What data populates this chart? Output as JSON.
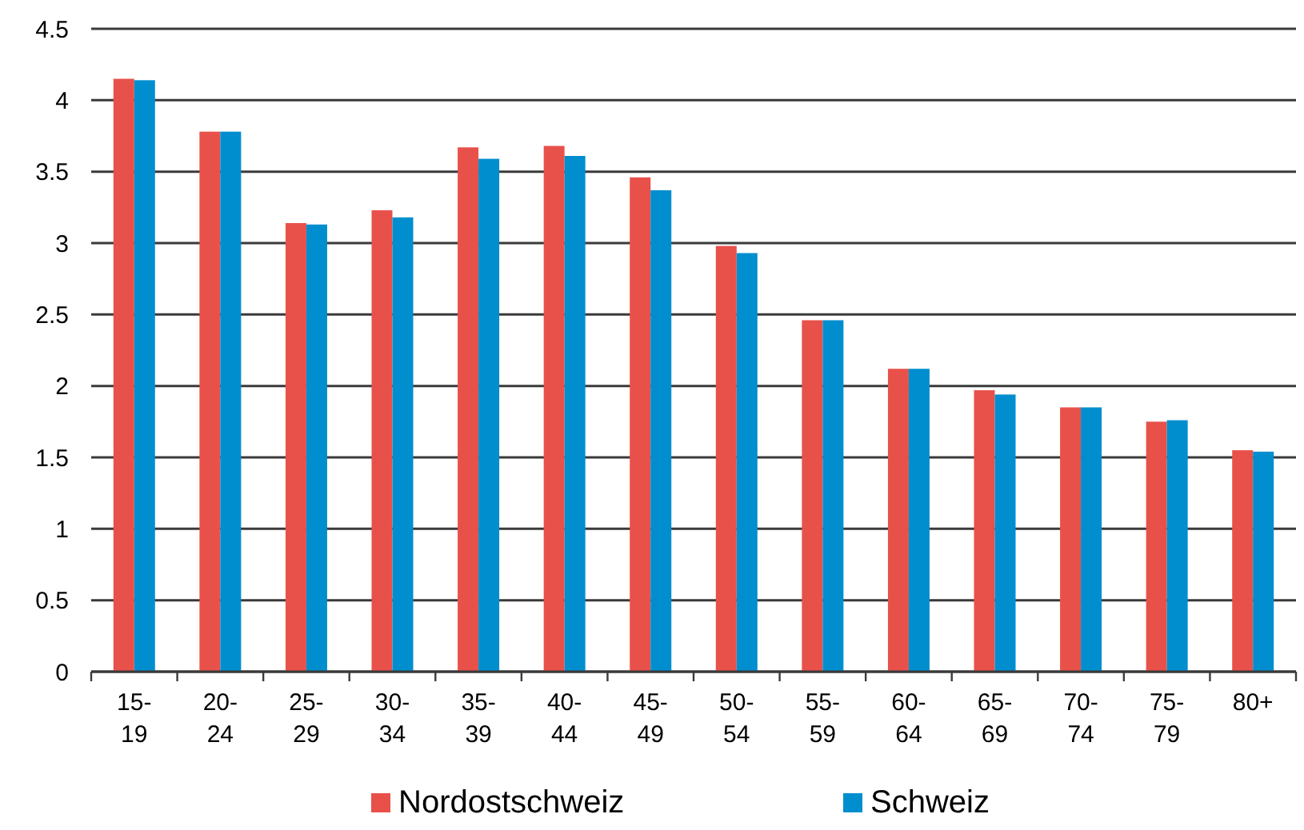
{
  "chart_data": {
    "type": "bar",
    "categories": [
      "15-19",
      "20-24",
      "25-29",
      "30-34",
      "35-39",
      "40-44",
      "45-49",
      "50-54",
      "55-59",
      "60-64",
      "65-69",
      "70-74",
      "75-79",
      "80+"
    ],
    "series": [
      {
        "name": "Nordostschweiz",
        "color": "#e8514a",
        "values": [
          4.15,
          3.78,
          3.14,
          3.23,
          3.67,
          3.68,
          3.46,
          2.98,
          2.46,
          2.12,
          1.97,
          1.85,
          1.75,
          1.55
        ]
      },
      {
        "name": "Schweiz",
        "color": "#008ecf",
        "values": [
          4.14,
          3.78,
          3.13,
          3.18,
          3.59,
          3.61,
          3.37,
          2.93,
          2.46,
          2.12,
          1.94,
          1.85,
          1.76,
          1.54
        ]
      }
    ],
    "ylim": [
      0,
      4.5
    ],
    "yticks": [
      0,
      0.5,
      1,
      1.5,
      2,
      2.5,
      3,
      3.5,
      4,
      4.5
    ],
    "grid": "y",
    "legend": "bottom"
  }
}
